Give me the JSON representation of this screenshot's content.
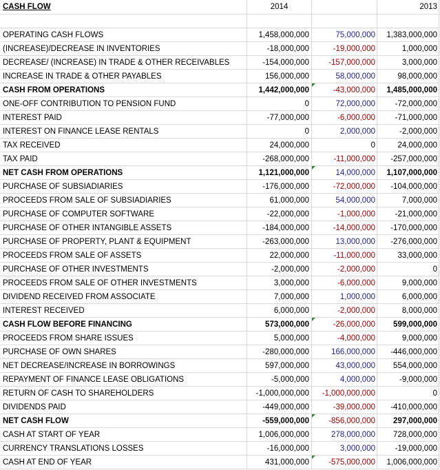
{
  "title": "CASH FLOW",
  "columns": [
    "2014",
    "",
    "2013"
  ],
  "rows": [
    {
      "label": "",
      "y2014": "",
      "diff": "",
      "diff_sign": "zero",
      "y2013": "",
      "bold": false
    },
    {
      "label": "OPERATING CASH FLOWS",
      "y2014": "1,458,000,000",
      "diff": "75,000,000",
      "diff_sign": "pos",
      "y2013": "1,383,000,000",
      "bold": false
    },
    {
      "label": "(INCREASE)/DECREASE IN INVENTORIES",
      "y2014": "-18,000,000",
      "diff": "-19,000,000",
      "diff_sign": "neg",
      "y2013": "1,000,000",
      "bold": false
    },
    {
      "label": "DECREASE/ (INCREASE) IN TRADE & OTHER RECEIVABLES",
      "y2014": "-154,000,000",
      "diff": "-157,000,000",
      "diff_sign": "neg",
      "y2013": "3,000,000",
      "bold": false
    },
    {
      "label": "INCREASE IN TRADE & OTHER PAYABLES",
      "y2014": "156,000,000",
      "diff": "58,000,000",
      "diff_sign": "pos",
      "y2013": "98,000,000",
      "bold": false
    },
    {
      "label": "CASH FROM OPERATIONS",
      "y2014": "1,442,000,000",
      "diff": "-43,000,000",
      "diff_sign": "neg",
      "y2013": "1,485,000,000",
      "bold": true,
      "flag": true
    },
    {
      "label": "ONE-OFF CONTRIBUTION TO PENSION FUND",
      "y2014": "0",
      "diff": "72,000,000",
      "diff_sign": "pos",
      "y2013": "-72,000,000",
      "bold": false
    },
    {
      "label": "INTEREST PAID",
      "y2014": "-77,000,000",
      "diff": "-6,000,000",
      "diff_sign": "neg",
      "y2013": "-71,000,000",
      "bold": false
    },
    {
      "label": "INTEREST ON FINANCE LEASE RENTALS",
      "y2014": "0",
      "diff": "2,000,000",
      "diff_sign": "pos",
      "y2013": "-2,000,000",
      "bold": false
    },
    {
      "label": "TAX RECEIVED",
      "y2014": "24,000,000",
      "diff": "0",
      "diff_sign": "zero",
      "y2013": "24,000,000",
      "bold": false
    },
    {
      "label": "TAX PAID",
      "y2014": "-268,000,000",
      "diff": "-11,000,000",
      "diff_sign": "neg",
      "y2013": "-257,000,000",
      "bold": false
    },
    {
      "label": "NET CASH FROM OPERATIONS",
      "y2014": "1,121,000,000",
      "diff": "14,000,000",
      "diff_sign": "pos",
      "y2013": "1,107,000,000",
      "bold": true,
      "flag": true
    },
    {
      "label": "PURCHASE OF SUBSIADIARIES",
      "y2014": "-176,000,000",
      "diff": "-72,000,000",
      "diff_sign": "neg",
      "y2013": "-104,000,000",
      "bold": false
    },
    {
      "label": "PROCEEDS FROM SALE OF SUBSIADIARIES",
      "y2014": "61,000,000",
      "diff": "54,000,000",
      "diff_sign": "pos",
      "y2013": "7,000,000",
      "bold": false
    },
    {
      "label": "PURCHASE OF COMPUTER SOFTWARE",
      "y2014": "-22,000,000",
      "diff": "-1,000,000",
      "diff_sign": "neg",
      "y2013": "-21,000,000",
      "bold": false
    },
    {
      "label": "PURCHASE OF OTHER INTANGIBLE ASSETS",
      "y2014": "-184,000,000",
      "diff": "-14,000,000",
      "diff_sign": "neg",
      "y2013": "-170,000,000",
      "bold": false
    },
    {
      "label": "PURCHASE OF PROPERTY, PLANT & EQUIPMENT",
      "y2014": "-263,000,000",
      "diff": "13,000,000",
      "diff_sign": "pos",
      "y2013": "-276,000,000",
      "bold": false
    },
    {
      "label": "PROCEEDS FROM SALE OF ASSETS",
      "y2014": "22,000,000",
      "diff": "-11,000,000",
      "diff_sign": "neg",
      "y2013": "33,000,000",
      "bold": false
    },
    {
      "label": "PURCHASE OF OTHER INVESTMENTS",
      "y2014": "-2,000,000",
      "diff": "-2,000,000",
      "diff_sign": "neg",
      "y2013": "0",
      "bold": false
    },
    {
      "label": "PROCEEDS FROM SALE OF OTHER INVESTMENTS",
      "y2014": "3,000,000",
      "diff": "-6,000,000",
      "diff_sign": "neg",
      "y2013": "9,000,000",
      "bold": false
    },
    {
      "label": "DIVIDEND RECEIVED FROM ASSOCIATE",
      "y2014": "7,000,000",
      "diff": "1,000,000",
      "diff_sign": "pos",
      "y2013": "6,000,000",
      "bold": false
    },
    {
      "label": "INTEREST RECEIVED",
      "y2014": "6,000,000",
      "diff": "-2,000,000",
      "diff_sign": "neg",
      "y2013": "8,000,000",
      "bold": false
    },
    {
      "label": "CASH FLOW BEFORE FINANCING",
      "y2014": "573,000,000",
      "diff": "-26,000,000",
      "diff_sign": "neg",
      "y2013": "599,000,000",
      "bold": true,
      "flag": true
    },
    {
      "label": "PROCEEDS FROM SHARE ISSUES",
      "y2014": "5,000,000",
      "diff": "-4,000,000",
      "diff_sign": "neg",
      "y2013": "9,000,000",
      "bold": false
    },
    {
      "label": "PURCHASE OF OWN SHARES",
      "y2014": "-280,000,000",
      "diff": "166,000,000",
      "diff_sign": "pos",
      "y2013": "-446,000,000",
      "bold": false
    },
    {
      "label": "NET DECREASE/INCREASE IN BORROWINGS",
      "y2014": "597,000,000",
      "diff": "43,000,000",
      "diff_sign": "pos",
      "y2013": "554,000,000",
      "bold": false
    },
    {
      "label": "REPAYMENT OF FINANCE LEASE OBLIGATIONS",
      "y2014": "-5,000,000",
      "diff": "4,000,000",
      "diff_sign": "pos",
      "y2013": "-9,000,000",
      "bold": false
    },
    {
      "label": "RETURN OF CASH TO SHAREHOLDERS",
      "y2014": "-1,000,000,000",
      "diff": "-1,000,000,000",
      "diff_sign": "neg",
      "y2013": "0",
      "bold": false
    },
    {
      "label": "DIVIDENDS PAID",
      "y2014": "-449,000,000",
      "diff": "-39,000,000",
      "diff_sign": "neg",
      "y2013": "-410,000,000",
      "bold": false
    },
    {
      "label": "NET CASH FLOW",
      "y2014": "-559,000,000",
      "diff": "-856,000,000",
      "diff_sign": "neg",
      "y2013": "297,000,000",
      "bold": true,
      "flag": true
    },
    {
      "label": "CASH AT START OF YEAR",
      "y2014": "1,006,000,000",
      "diff": "278,000,000",
      "diff_sign": "pos",
      "y2013": "728,000,000",
      "bold": false
    },
    {
      "label": "CURRENCY TRANSLATIONS LOSSES",
      "y2014": "-16,000,000",
      "diff": "3,000,000",
      "diff_sign": "pos",
      "y2013": "-19,000,000",
      "bold": false
    },
    {
      "label": "CASH AT END OF YEAR",
      "y2014": "431,000,000",
      "diff": "-575,000,000",
      "diff_sign": "neg",
      "y2013": "1,006,000,000",
      "bold": false,
      "flag": true
    }
  ]
}
